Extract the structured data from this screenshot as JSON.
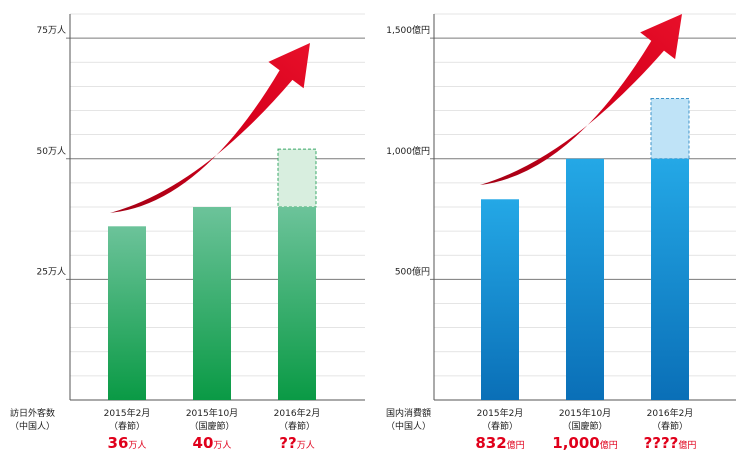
{
  "chart_data": [
    {
      "type": "bar",
      "ylabel": "訪日外客数",
      "ylabel2": "（中国人）",
      "categories": [
        {
          "line1": "2015年2月",
          "line2": "（春節）"
        },
        {
          "line1": "2015年10月",
          "line2": "（国慶節）"
        },
        {
          "line1": "2016年2月",
          "line2": "（春節）"
        }
      ],
      "values": [
        36,
        40,
        40
      ],
      "projected": [
        null,
        null,
        52
      ],
      "value_labels": [
        {
          "num": "36",
          "unit": "万人"
        },
        {
          "num": "40",
          "unit": "万人"
        },
        {
          "num": "??",
          "unit": "万人"
        }
      ],
      "yticks": [
        {
          "value": 25,
          "label": "25万人"
        },
        {
          "value": 50,
          "label": "50万人"
        },
        {
          "value": 75,
          "label": "75万人"
        }
      ],
      "ylim": [
        0,
        80
      ],
      "grid": true,
      "colors": {
        "bar_top": "#6cc39a",
        "bar_bottom": "#0a9a45",
        "projected": "#d8eedf",
        "projected_border": "#3aa868",
        "arrow": "#d7001c"
      }
    },
    {
      "type": "bar",
      "ylabel": "国内消費額",
      "ylabel2": "（中国人）",
      "categories": [
        {
          "line1": "2015年2月",
          "line2": "（春節）"
        },
        {
          "line1": "2015年10月",
          "line2": "（国慶節）"
        },
        {
          "line1": "2016年2月",
          "line2": "（春節）"
        }
      ],
      "values": [
        832,
        1000,
        1000
      ],
      "projected": [
        null,
        null,
        1250
      ],
      "value_labels": [
        {
          "num": "832",
          "unit": "億円"
        },
        {
          "num": "1,000",
          "unit": "億円"
        },
        {
          "num": "????",
          "unit": "億円"
        }
      ],
      "yticks": [
        {
          "value": 500,
          "label": "500億円"
        },
        {
          "value": 1000,
          "label": "1,000億円"
        },
        {
          "value": 1500,
          "label": "1,500億円"
        }
      ],
      "ylim": [
        0,
        1600
      ],
      "grid": true,
      "colors": {
        "bar_top": "#24a8e6",
        "bar_bottom": "#0a6fb7",
        "projected": "#bfe3f7",
        "projected_border": "#3e93c8",
        "arrow": "#d7001c"
      }
    }
  ]
}
